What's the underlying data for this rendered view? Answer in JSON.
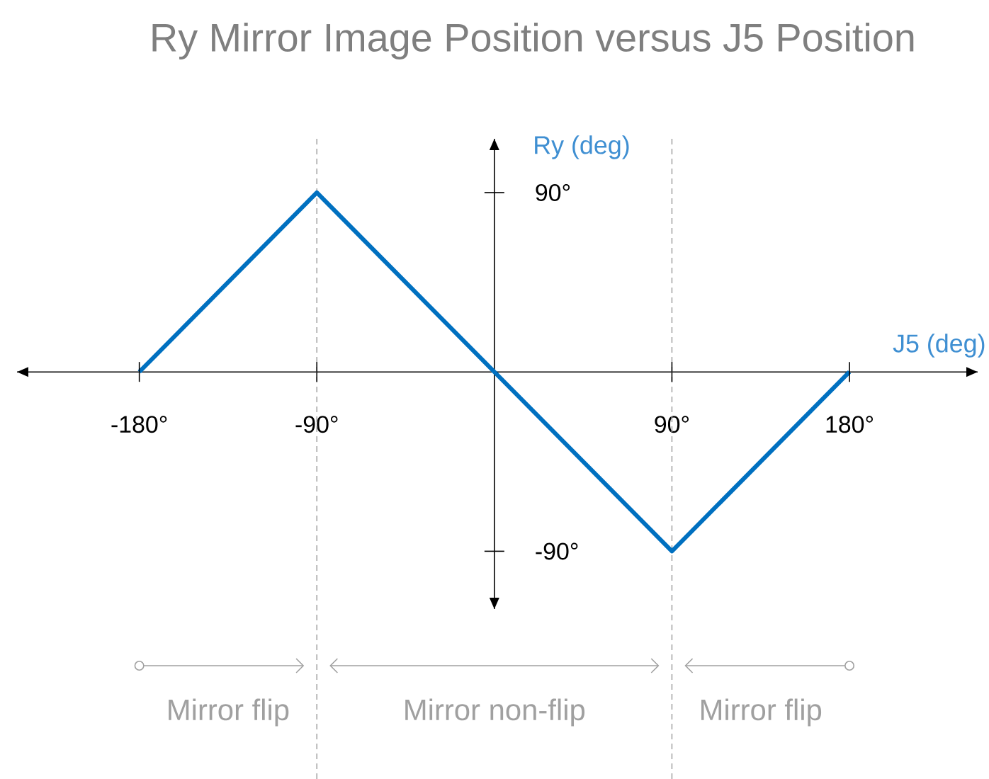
{
  "chart_data": {
    "type": "line",
    "title": "Ry Mirror Image Position versus J5 Position",
    "xlabel": "J5 (deg)",
    "ylabel": "Ry (deg)",
    "x": [
      -180,
      -90,
      90,
      180
    ],
    "series": [
      {
        "color": "#0070c0",
        "values": [
          0,
          90,
          -90,
          0
        ]
      }
    ],
    "xlim": [
      -242,
      245
    ],
    "ylim": [
      -119,
      117
    ],
    "xticks": [
      {
        "value": -180,
        "label": "-180°"
      },
      {
        "value": -90,
        "label": "-90°"
      },
      {
        "value": 90,
        "label": "90°"
      },
      {
        "value": 180,
        "label": "180°"
      }
    ],
    "yticks": [
      {
        "value": -90,
        "label": "-90°"
      },
      {
        "value": 90,
        "label": "90°"
      }
    ],
    "ref_lines": [
      {
        "axis": "x",
        "value": -90,
        "color": "#a6a6a6",
        "line_style": "dashed"
      },
      {
        "axis": "x",
        "value": 90,
        "color": "#a6a6a6",
        "line_style": "dashed"
      }
    ],
    "annotations": [
      "Mirror flip",
      "Mirror non-flip",
      "Mirror flip"
    ],
    "marker": "none",
    "line_style": "solid"
  }
}
